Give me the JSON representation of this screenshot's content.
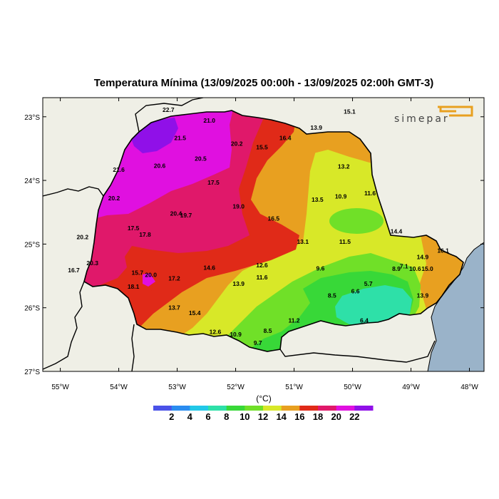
{
  "title": "Temperatura Mínima (13/09/2025 00:00h - 13/09/2025 02:00h GMT-3)",
  "logo": {
    "text": "SIMEPAR",
    "accent_color": "#e8a020"
  },
  "map": {
    "lon_range": [
      -55.3,
      -47.75
    ],
    "lat_range": [
      -27.0,
      -22.7
    ],
    "lat_ticks": [
      "23°S",
      "24°S",
      "25°S",
      "26°S",
      "27°S"
    ],
    "lon_ticks": [
      "55°W",
      "54°W",
      "53°W",
      "52°W",
      "51°W",
      "50°W",
      "49°W",
      "48°W"
    ],
    "land_color": "#efefe6",
    "ocean_color": "#9ab3c9"
  },
  "stations": [
    {
      "v": "22.7",
      "lon": -53.15,
      "lat": -22.89
    },
    {
      "v": "21.0",
      "lon": -52.45,
      "lat": -23.06
    },
    {
      "v": "21.5",
      "lon": -52.95,
      "lat": -23.33
    },
    {
      "v": "20.2",
      "lon": -51.98,
      "lat": -23.42
    },
    {
      "v": "15.5",
      "lon": -51.55,
      "lat": -23.48
    },
    {
      "v": "16.4",
      "lon": -51.15,
      "lat": -23.33
    },
    {
      "v": "13.9",
      "lon": -50.62,
      "lat": -23.17
    },
    {
      "v": "15.1",
      "lon": -50.05,
      "lat": -22.92
    },
    {
      "v": "20.5",
      "lon": -52.6,
      "lat": -23.66
    },
    {
      "v": "20.6",
      "lon": -53.3,
      "lat": -23.77
    },
    {
      "v": "21.6",
      "lon": -54.0,
      "lat": -23.83
    },
    {
      "v": "13.2",
      "lon": -50.15,
      "lat": -23.78
    },
    {
      "v": "17.5",
      "lon": -52.38,
      "lat": -24.03
    },
    {
      "v": "20.2",
      "lon": -54.08,
      "lat": -24.28
    },
    {
      "v": "13.5",
      "lon": -50.6,
      "lat": -24.3
    },
    {
      "v": "10.9",
      "lon": -50.2,
      "lat": -24.25
    },
    {
      "v": "11.6",
      "lon": -49.7,
      "lat": -24.2
    },
    {
      "v": "19.0",
      "lon": -51.95,
      "lat": -24.41
    },
    {
      "v": "20.4",
      "lon": -53.02,
      "lat": -24.52
    },
    {
      "v": "19.7",
      "lon": -52.85,
      "lat": -24.55
    },
    {
      "v": "16.5",
      "lon": -51.35,
      "lat": -24.6
    },
    {
      "v": "17.5",
      "lon": -53.75,
      "lat": -24.75
    },
    {
      "v": "17.8",
      "lon": -53.55,
      "lat": -24.85
    },
    {
      "v": "20.2",
      "lon": -54.62,
      "lat": -24.89
    },
    {
      "v": "14.4",
      "lon": -49.25,
      "lat": -24.8
    },
    {
      "v": "13.1",
      "lon": -50.85,
      "lat": -24.96
    },
    {
      "v": "11.5",
      "lon": -50.13,
      "lat": -24.96
    },
    {
      "v": "20.3",
      "lon": -54.45,
      "lat": -25.3
    },
    {
      "v": "16.7",
      "lon": -54.77,
      "lat": -25.41
    },
    {
      "v": "14.6",
      "lon": -52.45,
      "lat": -25.37
    },
    {
      "v": "12.6",
      "lon": -51.55,
      "lat": -25.33
    },
    {
      "v": "9.6",
      "lon": -50.55,
      "lat": -25.38
    },
    {
      "v": "8.9",
      "lon": -49.25,
      "lat": -25.39
    },
    {
      "v": "7.1",
      "lon": -49.12,
      "lat": -25.35
    },
    {
      "v": "10.6",
      "lon": -48.93,
      "lat": -25.39
    },
    {
      "v": "15.0",
      "lon": -48.72,
      "lat": -25.39
    },
    {
      "v": "14.9",
      "lon": -48.8,
      "lat": -25.2
    },
    {
      "v": "16.1",
      "lon": -48.45,
      "lat": -25.1
    },
    {
      "v": "15.7",
      "lon": -53.68,
      "lat": -25.45
    },
    {
      "v": "20.0",
      "lon": -53.45,
      "lat": -25.48
    },
    {
      "v": "17.2",
      "lon": -53.05,
      "lat": -25.54
    },
    {
      "v": "11.6",
      "lon": -51.55,
      "lat": -25.52
    },
    {
      "v": "13.9",
      "lon": -51.95,
      "lat": -25.62
    },
    {
      "v": "5.7",
      "lon": -49.73,
      "lat": -25.62
    },
    {
      "v": "18.1",
      "lon": -53.75,
      "lat": -25.67
    },
    {
      "v": "6.6",
      "lon": -49.95,
      "lat": -25.74
    },
    {
      "v": "8.5",
      "lon": -50.35,
      "lat": -25.81
    },
    {
      "v": "13.9",
      "lon": -48.8,
      "lat": -25.81
    },
    {
      "v": "13.7",
      "lon": -53.05,
      "lat": -26.0
    },
    {
      "v": "15.4",
      "lon": -52.7,
      "lat": -26.08
    },
    {
      "v": "11.2",
      "lon": -51.0,
      "lat": -26.2
    },
    {
      "v": "6.4",
      "lon": -49.8,
      "lat": -26.2
    },
    {
      "v": "12.6",
      "lon": -52.35,
      "lat": -26.38
    },
    {
      "v": "10.9",
      "lon": -52.0,
      "lat": -26.42
    },
    {
      "v": "8.5",
      "lon": -51.45,
      "lat": -26.36
    },
    {
      "v": "9.7",
      "lon": -51.62,
      "lat": -26.55
    }
  ],
  "colorbar": {
    "unit": "(°C)",
    "levels": [
      "2",
      "4",
      "6",
      "8",
      "10",
      "12",
      "14",
      "16",
      "18",
      "20",
      "22"
    ],
    "colors": [
      "#4a52e8",
      "#2a8cf0",
      "#22c8e8",
      "#2ee0a8",
      "#38d838",
      "#70e028",
      "#d8e828",
      "#e8a020",
      "#e02a18",
      "#e0186a",
      "#e010e0",
      "#9010e8"
    ]
  }
}
